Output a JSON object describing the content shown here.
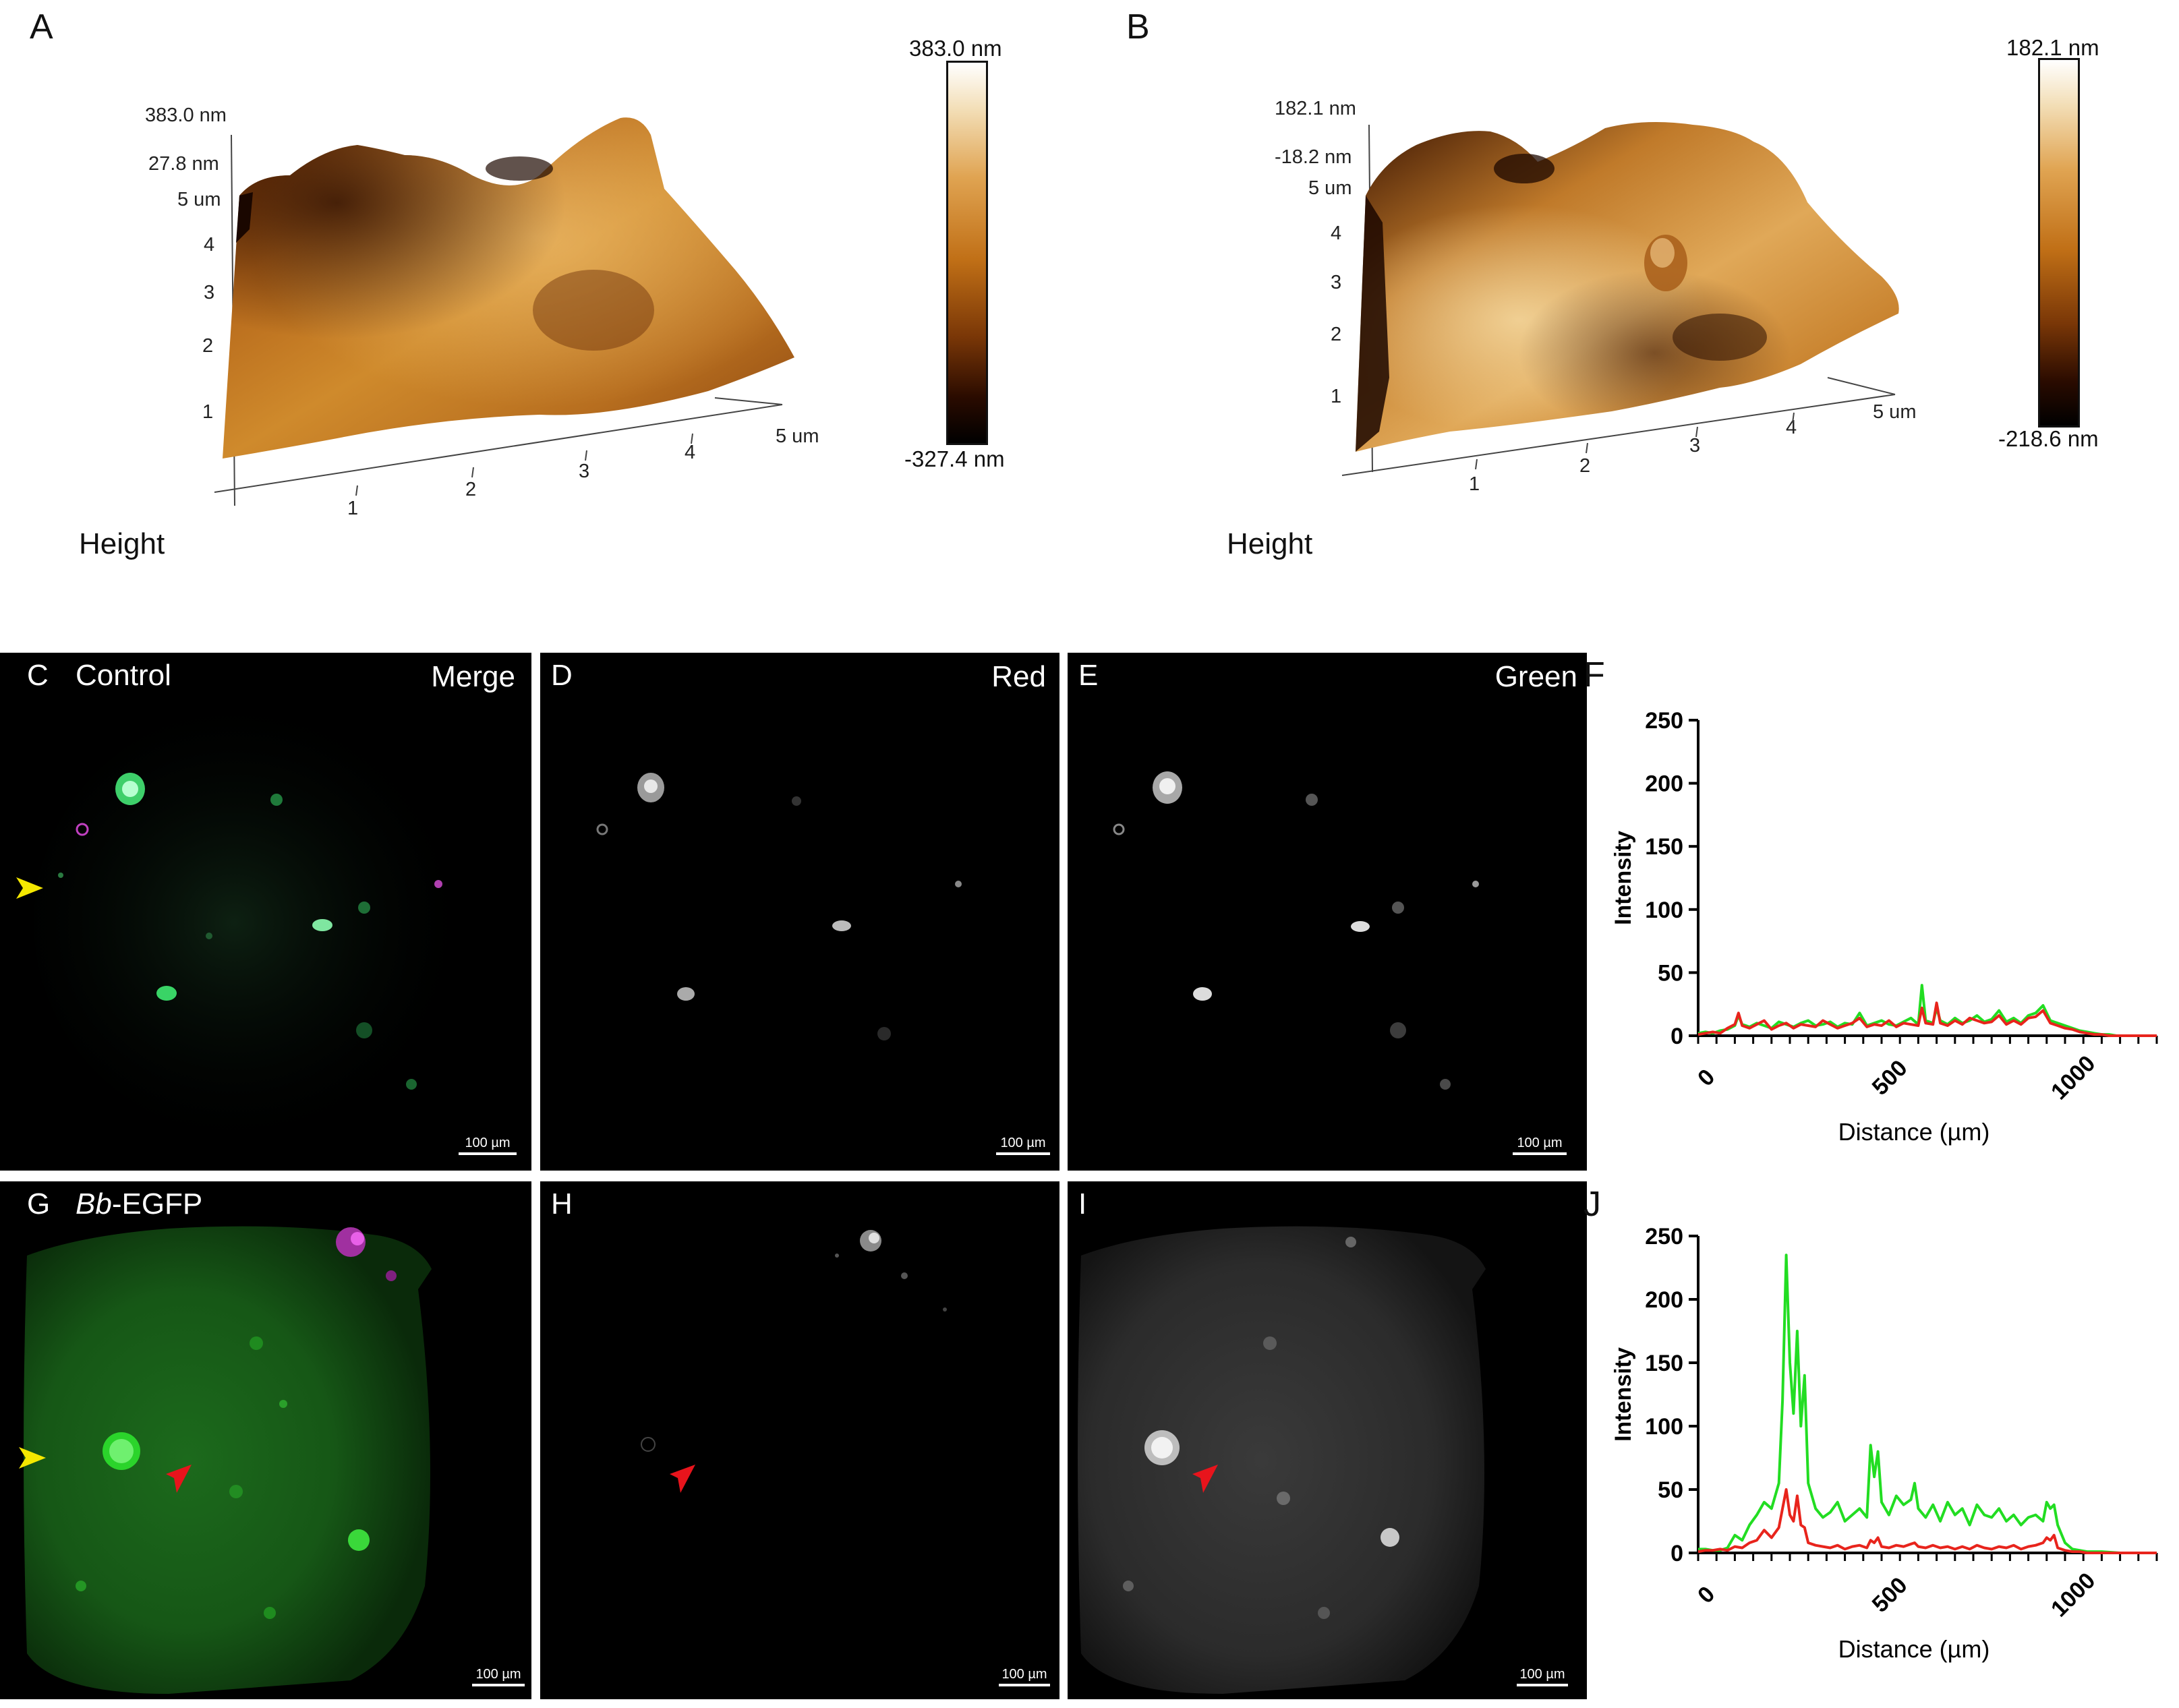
{
  "panel_letters": {
    "A": "A",
    "B": "B",
    "C": "C",
    "D": "D",
    "E": "E",
    "F": "F",
    "G": "G",
    "H": "H",
    "I": "I",
    "J": "J"
  },
  "afm_a": {
    "z_top": "383.0 nm",
    "z_mid": "27.8 nm",
    "y_max": "5 um",
    "y_ticks": [
      "4",
      "3",
      "2",
      "1"
    ],
    "x_ticks": [
      "1",
      "2",
      "3",
      "4"
    ],
    "x_max": "5 um",
    "mode_label": "Height",
    "colorbar_max": "383.0 nm",
    "colorbar_min": "-327.4 nm"
  },
  "afm_b": {
    "z_top": "182.1 nm",
    "z_mid": "-18.2 nm",
    "y_max": "5 um",
    "y_ticks": [
      "4",
      "3",
      "2",
      "1"
    ],
    "x_ticks": [
      "1",
      "2",
      "3",
      "4"
    ],
    "x_max": "5 um",
    "mode_label": "Height",
    "colorbar_max": "182.1 nm",
    "colorbar_min": "-218.6 nm"
  },
  "micro": {
    "C": {
      "condition": "Control",
      "channel": "Merge",
      "scale": "100 µm"
    },
    "D": {
      "channel": "Red",
      "scale": "100 µm"
    },
    "E": {
      "channel": "Green",
      "scale": "100 µm"
    },
    "G": {
      "condition_italic": "Bb",
      "condition_rest": "-EGFP",
      "scale": "100 µm"
    },
    "H": {
      "scale": "100 µm"
    },
    "I": {
      "scale": "100 µm"
    }
  },
  "colors": {
    "green_line": "#22dd22",
    "red_line": "#e8241c",
    "arrow_yellow": "#f5e800",
    "arrow_red": "#e8141c"
  },
  "chart_data": [
    {
      "panel": "F",
      "type": "line",
      "xlabel": "Distance (µm)",
      "ylabel": "Intensity",
      "xlim": [
        0,
        1250
      ],
      "ylim": [
        0,
        250
      ],
      "xticks": [
        0,
        500,
        1000
      ],
      "yticks": [
        0,
        50,
        100,
        150,
        200,
        250
      ],
      "x": [
        0,
        20,
        40,
        60,
        80,
        100,
        110,
        120,
        140,
        160,
        180,
        200,
        220,
        240,
        260,
        280,
        300,
        320,
        340,
        360,
        380,
        400,
        420,
        440,
        460,
        480,
        500,
        520,
        540,
        560,
        580,
        600,
        610,
        620,
        640,
        650,
        660,
        680,
        700,
        720,
        740,
        760,
        780,
        800,
        820,
        840,
        860,
        880,
        900,
        920,
        940,
        960,
        980,
        1000,
        1020,
        1040,
        1060,
        1080,
        1100,
        1120,
        1140,
        1160,
        1180,
        1200,
        1220,
        1250
      ],
      "series": [
        {
          "color": "green",
          "values": [
            2,
            3,
            2,
            4,
            5,
            8,
            16,
            9,
            7,
            10,
            8,
            6,
            11,
            9,
            7,
            10,
            12,
            8,
            9,
            11,
            7,
            10,
            9,
            18,
            8,
            10,
            12,
            9,
            8,
            11,
            14,
            9,
            40,
            12,
            10,
            22,
            12,
            9,
            14,
            10,
            12,
            16,
            11,
            13,
            20,
            11,
            14,
            10,
            16,
            18,
            24,
            12,
            10,
            8,
            6,
            4,
            3,
            2,
            1,
            1,
            0,
            0,
            0,
            0,
            0,
            0
          ]
        },
        {
          "color": "red",
          "values": [
            1,
            2,
            3,
            2,
            6,
            9,
            18,
            8,
            6,
            9,
            12,
            5,
            8,
            10,
            6,
            9,
            8,
            7,
            12,
            9,
            6,
            8,
            10,
            14,
            7,
            9,
            8,
            12,
            7,
            10,
            9,
            8,
            22,
            10,
            9,
            26,
            10,
            8,
            12,
            9,
            14,
            12,
            10,
            11,
            16,
            9,
            12,
            9,
            14,
            15,
            20,
            10,
            8,
            6,
            5,
            3,
            2,
            1,
            1,
            0,
            0,
            0,
            0,
            0,
            0,
            0
          ]
        }
      ]
    },
    {
      "panel": "J",
      "type": "line",
      "xlabel": "Distance (µm)",
      "ylabel": "Intensity",
      "xlim": [
        0,
        1250
      ],
      "ylim": [
        0,
        250
      ],
      "xticks": [
        0,
        500,
        1000
      ],
      "yticks": [
        0,
        50,
        100,
        150,
        200,
        250
      ],
      "x": [
        0,
        20,
        40,
        60,
        80,
        100,
        120,
        140,
        160,
        180,
        200,
        220,
        230,
        240,
        250,
        260,
        270,
        280,
        290,
        300,
        320,
        340,
        360,
        380,
        400,
        420,
        440,
        460,
        470,
        480,
        490,
        500,
        520,
        540,
        560,
        580,
        590,
        600,
        620,
        640,
        660,
        680,
        700,
        720,
        740,
        760,
        780,
        800,
        820,
        840,
        860,
        880,
        900,
        920,
        940,
        950,
        960,
        970,
        980,
        1000,
        1020,
        1040,
        1060,
        1100,
        1150,
        1200,
        1250
      ],
      "series": [
        {
          "color": "green",
          "values": [
            3,
            3,
            2,
            2,
            4,
            14,
            10,
            22,
            30,
            40,
            35,
            55,
            120,
            235,
            150,
            110,
            175,
            100,
            140,
            55,
            35,
            28,
            32,
            40,
            25,
            30,
            35,
            28,
            85,
            60,
            80,
            40,
            30,
            45,
            38,
            42,
            55,
            35,
            28,
            38,
            25,
            40,
            30,
            35,
            22,
            38,
            30,
            28,
            35,
            25,
            30,
            22,
            28,
            30,
            25,
            40,
            35,
            38,
            22,
            8,
            3,
            2,
            1,
            1,
            0,
            0,
            0
          ]
        },
        {
          "color": "red",
          "values": [
            1,
            2,
            2,
            3,
            2,
            5,
            4,
            8,
            10,
            18,
            12,
            20,
            35,
            50,
            30,
            25,
            45,
            22,
            20,
            8,
            6,
            5,
            4,
            6,
            3,
            5,
            6,
            4,
            10,
            8,
            12,
            5,
            4,
            6,
            5,
            7,
            8,
            5,
            4,
            6,
            4,
            5,
            3,
            5,
            3,
            6,
            4,
            3,
            5,
            4,
            6,
            3,
            5,
            6,
            8,
            12,
            10,
            14,
            4,
            2,
            1,
            1,
            0,
            0,
            0,
            0,
            0
          ]
        }
      ]
    }
  ]
}
